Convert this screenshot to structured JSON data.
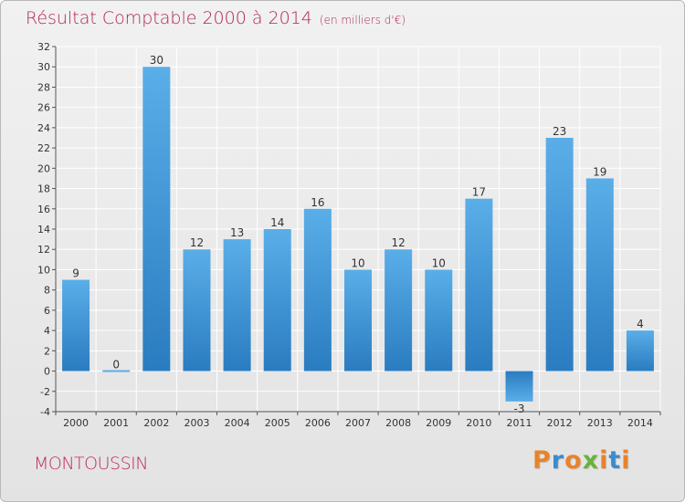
{
  "header": {
    "title": "Résultat Comptable 2000 à 2014",
    "subtitle": "(en milliers d'€)"
  },
  "footer": {
    "commune": "MONTOUSSIN",
    "brand": [
      "P",
      "r",
      "o",
      "x",
      "i",
      "t",
      "i"
    ]
  },
  "colors": {
    "title": "#b0245b",
    "bar_top": "#5aaee8",
    "bar_bottom": "#2a7cc0",
    "brand": [
      "#e8832a",
      "#3a8bd0",
      "#e8832a",
      "#6ab23c",
      "#e8832a",
      "#3a8bd0",
      "#e8832a"
    ]
  },
  "chart_data": {
    "type": "bar",
    "categories": [
      "2000",
      "2001",
      "2002",
      "2003",
      "2004",
      "2005",
      "2006",
      "2007",
      "2008",
      "2009",
      "2010",
      "2011",
      "2012",
      "2013",
      "2014"
    ],
    "values": [
      9,
      0,
      30,
      12,
      13,
      14,
      16,
      10,
      12,
      10,
      17,
      -3,
      23,
      19,
      4
    ],
    "ylim": [
      -4,
      32
    ],
    "yticks": [
      -4,
      -2,
      0,
      2,
      4,
      6,
      8,
      10,
      12,
      14,
      16,
      18,
      20,
      22,
      24,
      26,
      28,
      30,
      32
    ],
    "grid": true,
    "legend": "none"
  }
}
